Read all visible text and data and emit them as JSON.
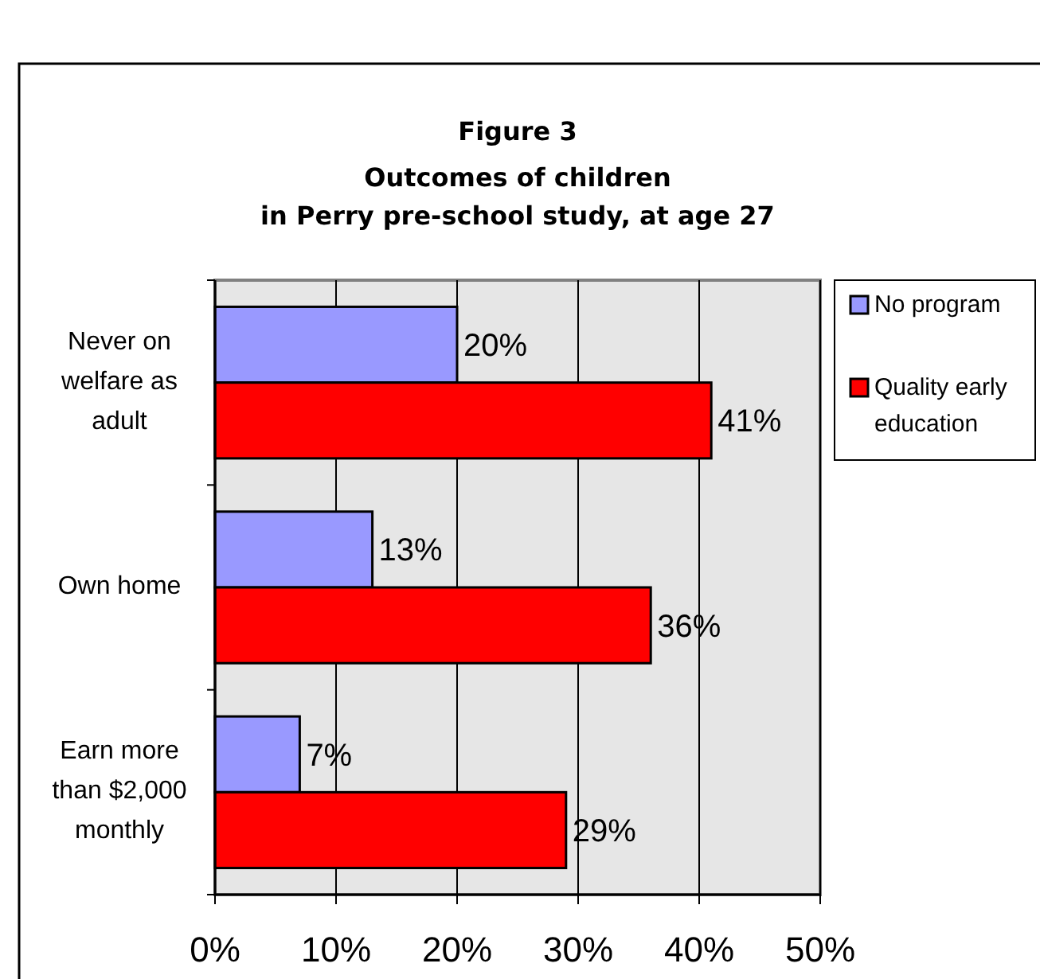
{
  "chart_data": {
    "type": "bar",
    "orientation": "horizontal",
    "title": "Figure 3",
    "subtitle": "Outcomes of children\nin Perry pre-school study, at age 27",
    "categories": [
      "Never on welfare as adult",
      "Own home",
      "Earn more than $2,000 monthly"
    ],
    "series": [
      {
        "name": "No program",
        "color": "#9999ff",
        "values": [
          20,
          13,
          7
        ],
        "value_labels": [
          "20%",
          "13%",
          "7%"
        ]
      },
      {
        "name": "Quality early education",
        "color": "#ff0000",
        "values": [
          41,
          36,
          29
        ],
        "value_labels": [
          "41%",
          "36%",
          "29%"
        ]
      }
    ],
    "xlim": [
      0,
      50
    ],
    "xticks": [
      {
        "value": 0,
        "label": "0%"
      },
      {
        "value": 10,
        "label": "10%"
      },
      {
        "value": 20,
        "label": "20%"
      },
      {
        "value": 30,
        "label": "30%"
      },
      {
        "value": 40,
        "label": "40%"
      },
      {
        "value": 50,
        "label": "50%"
      }
    ],
    "grid": "x",
    "legend": "right"
  }
}
